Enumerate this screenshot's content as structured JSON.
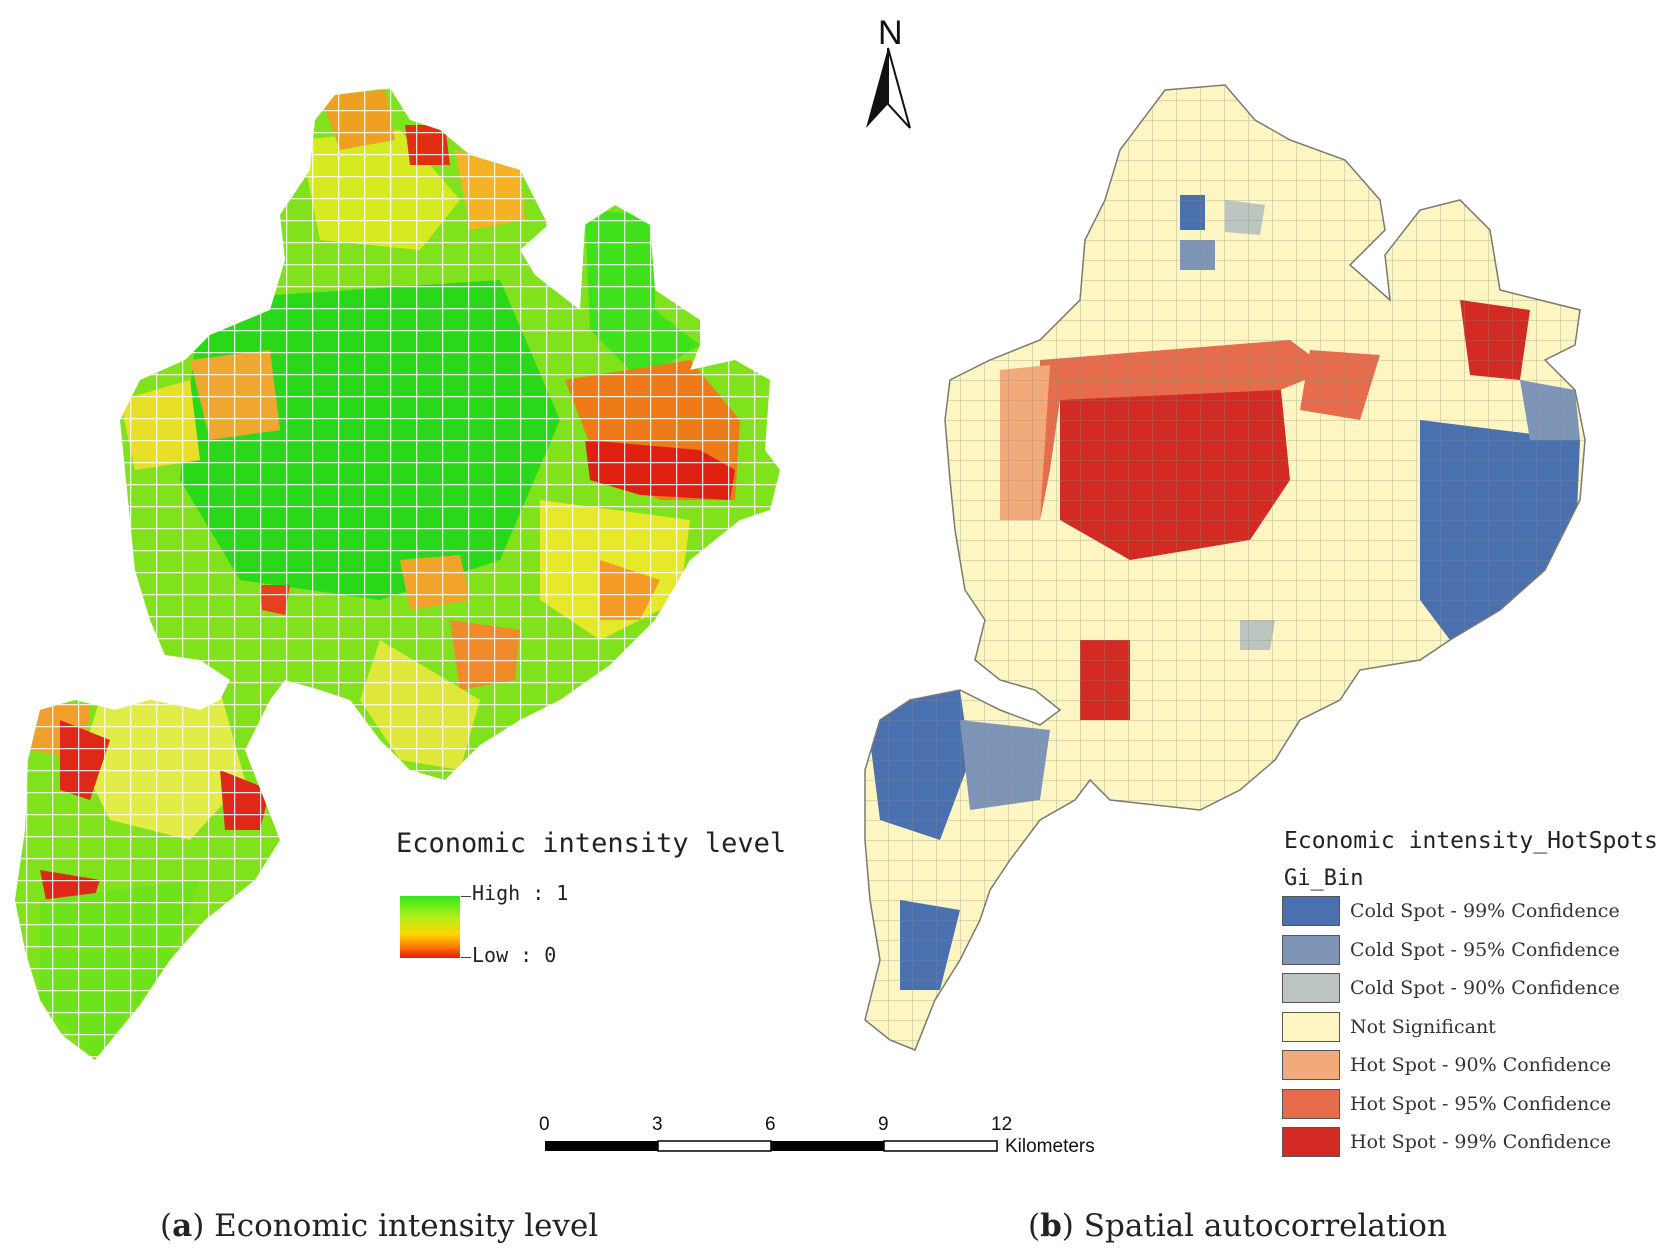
{
  "north_label": "N",
  "panel_a": {
    "legend_title": "Economic intensity level",
    "legend_high": "High : 1",
    "legend_low": "Low : 0",
    "gradient_colors": [
      "#2ee81a",
      "#b7ee1a",
      "#ffd600",
      "#ff7a00",
      "#e41a0a"
    ],
    "caption_letter": "a",
    "caption_text": "Economic intensity level"
  },
  "panel_b": {
    "legend_title": "Economic intensity_HotSpots",
    "legend_field": "Gi_Bin",
    "classes": [
      {
        "label": "Cold Spot - 99% Confidence",
        "color": "#4a70b0"
      },
      {
        "label": "Cold Spot - 95% Confidence",
        "color": "#7e95b8"
      },
      {
        "label": "Cold Spot - 90% Confidence",
        "color": "#bcc4c0"
      },
      {
        "label": "Not Significant",
        "color": "#fdf6c3"
      },
      {
        "label": "Hot Spot - 90% Confidence",
        "color": "#f2aa7a"
      },
      {
        "label": "Hot Spot - 95% Confidence",
        "color": "#e66c4c"
      },
      {
        "label": "Hot Spot - 99% Confidence",
        "color": "#d42a24"
      }
    ],
    "caption_letter": "b",
    "caption_text": "Spatial autocorrelation"
  },
  "scale_bar": {
    "ticks": [
      "0",
      "3",
      "6",
      "9",
      "12"
    ],
    "unit": "Kilometers"
  }
}
